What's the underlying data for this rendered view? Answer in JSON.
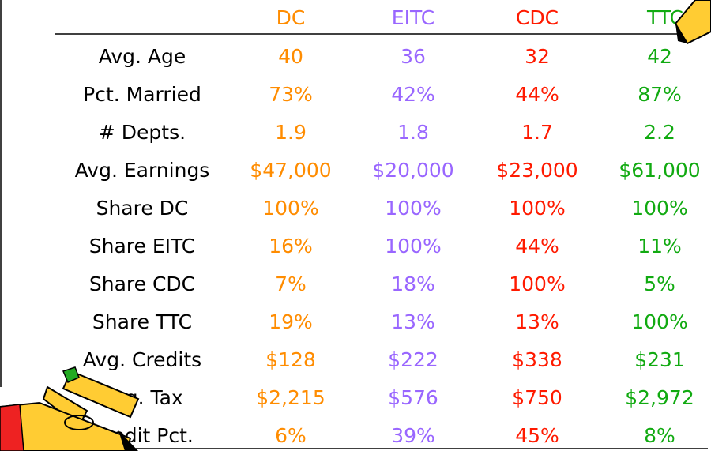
{
  "table": {
    "columns": [
      "DC",
      "EITC",
      "CDC",
      "TTC"
    ],
    "column_colors": [
      "#ff8c00",
      "#9966ff",
      "#ff1a00",
      "#11aa11"
    ],
    "rows": [
      {
        "label": "Avg. Age",
        "cells": [
          "40",
          "36",
          "32",
          "42"
        ]
      },
      {
        "label": "Pct. Married",
        "cells": [
          "73%",
          "42%",
          "44%",
          "87%"
        ]
      },
      {
        "label": "# Depts.",
        "cells": [
          "1.9",
          "1.8",
          "1.7",
          "2.2"
        ]
      },
      {
        "label": "Avg. Earnings",
        "cells": [
          "$47,000",
          "$20,000",
          "$23,000",
          "$61,000"
        ]
      },
      {
        "label": "Share DC",
        "cells": [
          "100%",
          "100%",
          "100%",
          "100%"
        ]
      },
      {
        "label": "Share EITC",
        "cells": [
          "16%",
          "100%",
          "44%",
          "11%"
        ]
      },
      {
        "label": "Share CDC",
        "cells": [
          "7%",
          "18%",
          "100%",
          "5%"
        ]
      },
      {
        "label": "Share TTC",
        "cells": [
          "19%",
          "13%",
          "13%",
          "100%"
        ]
      },
      {
        "label": "Avg. Credits",
        "cells": [
          "$128",
          "$222",
          "$338",
          "$231"
        ]
      },
      {
        "label": "Avg. Tax",
        "cells": [
          "$2,215",
          "$576",
          "$750",
          "$2,972"
        ]
      },
      {
        "label": "Credit Pct.",
        "cells": [
          "6%",
          "39%",
          "45%",
          "8%"
        ]
      }
    ]
  }
}
